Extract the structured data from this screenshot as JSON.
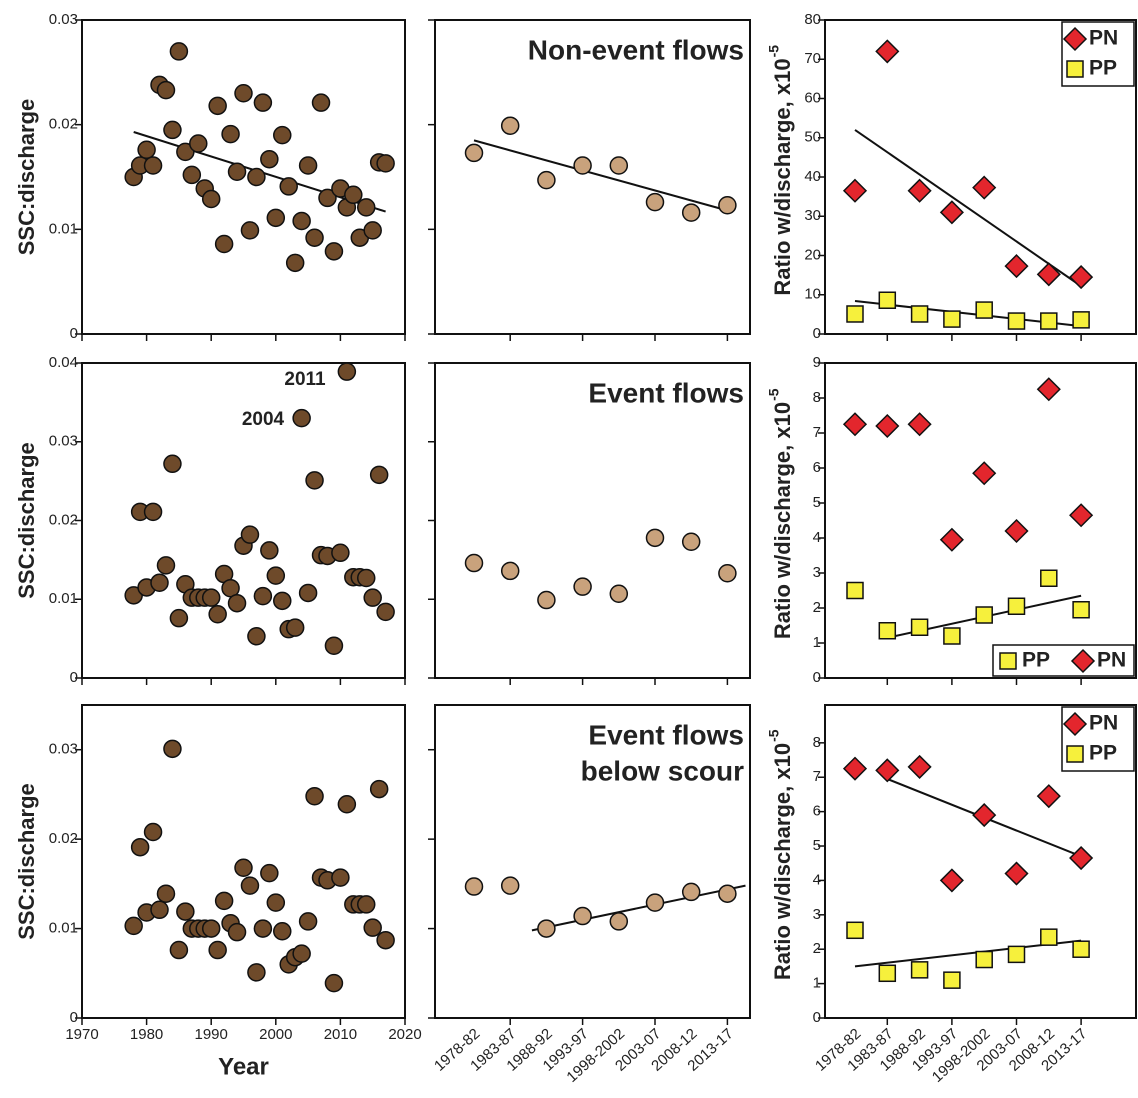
{
  "chart_data": [
    {
      "type": "scatter",
      "ylabel": "SSC:discharge",
      "xlim": [
        1970,
        2020
      ],
      "xticks": [
        1970,
        1980,
        1990,
        2000,
        2010,
        2020
      ],
      "xtick_labels": false,
      "ylim": [
        0,
        0.03
      ],
      "yticks": [
        0,
        0.01,
        0.02,
        0.03
      ],
      "x": [
        1978,
        1979,
        1980,
        1981,
        1982,
        1983,
        1984,
        1985,
        1986,
        1987,
        1988,
        1989,
        1990,
        1991,
        1992,
        1993,
        1994,
        1995,
        1996,
        1997,
        1998,
        1999,
        2000,
        2001,
        2002,
        2003,
        2004,
        2005,
        2006,
        2007,
        2008,
        2009,
        2010,
        2011,
        2012,
        2013,
        2014,
        2015,
        2016,
        2017
      ],
      "series": [
        {
          "color": "#6e4a2a",
          "marker": "circle",
          "values": [
            0.015,
            0.0161,
            0.0176,
            0.0161,
            0.0238,
            0.0233,
            0.0195,
            0.027,
            0.0174,
            0.0152,
            0.0182,
            0.0139,
            0.0129,
            0.0218,
            0.0086,
            0.0191,
            0.0155,
            0.023,
            0.0099,
            0.015,
            0.0221,
            0.0167,
            0.0111,
            0.019,
            0.0141,
            0.0068,
            0.0108,
            0.0161,
            0.0092,
            0.0221,
            0.013,
            0.0079,
            0.0139,
            0.0121,
            0.0133,
            0.0092,
            0.0121,
            0.0099,
            0.0164,
            0.0163
          ],
          "trend": {
            "x": [
              1978,
              2017
            ],
            "values": [
              0.0193,
              0.0117
            ]
          }
        }
      ]
    },
    {
      "type": "dotplot",
      "title_lines": [
        "Non-event flows"
      ],
      "categories": [
        null,
        null,
        null,
        null,
        null,
        null,
        null,
        null
      ],
      "ytick_labels": false,
      "ylim": [
        0,
        0.03
      ],
      "yticks": [
        0,
        0.01,
        0.02,
        0.03
      ],
      "series": [
        {
          "color": "#c9a27c",
          "marker": "circle",
          "values": [
            0.0173,
            0.0199,
            0.0147,
            0.0161,
            0.0161,
            0.0126,
            0.0116,
            0.0123
          ],
          "trend": {
            "x": [
              0,
              7
            ],
            "values": [
              0.0185,
              0.0118
            ]
          }
        }
      ]
    },
    {
      "type": "dotplot",
      "ylabel": "Ratio w/discharge, x10",
      "ylabel_exponent": "-5",
      "categories": [
        null,
        null,
        null,
        null,
        null,
        null,
        null,
        null
      ],
      "ylim": [
        0,
        80
      ],
      "yticks": [
        0,
        10,
        20,
        30,
        40,
        50,
        60,
        70,
        80
      ],
      "legend": "upper right",
      "series": [
        {
          "name": "PN",
          "color": "#e3262d",
          "marker": "diamond",
          "values": [
            36.5,
            72,
            36.5,
            31,
            37.3,
            17.3,
            15.2,
            14.5
          ],
          "trend": {
            "x": [
              0,
              7
            ],
            "values": [
              52,
              12.2
            ]
          }
        },
        {
          "name": "PP",
          "color": "#f6f03c",
          "marker": "square",
          "values": [
            5.1,
            8.6,
            5.1,
            3.8,
            6.1,
            3.3,
            3.3,
            3.6
          ],
          "trend": {
            "x": [
              0,
              7
            ],
            "values": [
              8.4,
              2.0
            ]
          }
        }
      ]
    },
    {
      "type": "scatter",
      "ylabel": "SSC:discharge",
      "xlim": [
        1970,
        2020
      ],
      "xticks": [
        1970,
        1980,
        1990,
        2000,
        2010,
        2020
      ],
      "xtick_labels": false,
      "ylim": [
        0,
        0.04
      ],
      "yticks": [
        0,
        0.01,
        0.02,
        0.03,
        0.04
      ],
      "annotations": [
        "2011",
        "2004"
      ],
      "x": [
        1978,
        1979,
        1980,
        1981,
        1982,
        1983,
        1984,
        1985,
        1986,
        1987,
        1988,
        1989,
        1990,
        1991,
        1992,
        1993,
        1994,
        1995,
        1996,
        1997,
        1998,
        1999,
        2000,
        2001,
        2002,
        2003,
        2004,
        2005,
        2006,
        2007,
        2008,
        2009,
        2010,
        2011,
        2012,
        2013,
        2014,
        2015,
        2016,
        2017
      ],
      "series": [
        {
          "color": "#6e4a2a",
          "marker": "circle",
          "values": [
            0.0105,
            0.0211,
            0.0115,
            0.0211,
            0.0121,
            0.0143,
            0.0272,
            0.0076,
            0.0119,
            0.0102,
            0.0102,
            0.0102,
            0.0102,
            0.0081,
            0.0132,
            0.0114,
            0.0095,
            0.0168,
            0.0182,
            0.0053,
            0.0104,
            0.0162,
            0.013,
            0.0098,
            0.0062,
            0.0064,
            0.033,
            0.0108,
            0.0251,
            0.0156,
            0.0155,
            0.0041,
            0.0159,
            0.0389,
            0.0128,
            0.0128,
            0.0127,
            0.0102,
            0.0258,
            0.0084
          ]
        }
      ]
    },
    {
      "type": "dotplot",
      "title_lines": [
        "Event flows"
      ],
      "categories": [
        null,
        null,
        null,
        null,
        null,
        null,
        null,
        null
      ],
      "ytick_labels": false,
      "ylim": [
        0,
        0.04
      ],
      "yticks": [
        0,
        0.01,
        0.02,
        0.03,
        0.04
      ],
      "series": [
        {
          "color": "#c9a27c",
          "marker": "circle",
          "values": [
            0.0146,
            0.0136,
            0.0099,
            0.0116,
            0.0107,
            0.0178,
            0.0173,
            0.0133
          ]
        }
      ]
    },
    {
      "type": "dotplot",
      "ylabel": "Ratio w/discharge, x10",
      "ylabel_exponent": "-5",
      "categories": [
        null,
        null,
        null,
        null,
        null,
        null,
        null,
        null
      ],
      "ylim": [
        0,
        9
      ],
      "yticks": [
        0,
        1,
        2,
        3,
        4,
        5,
        6,
        7,
        8,
        9
      ],
      "legend": "lower right",
      "series": [
        {
          "name": "PP",
          "color": "#f6f03c",
          "marker": "square",
          "values": [
            2.5,
            1.35,
            1.45,
            1.2,
            1.8,
            2.05,
            2.85,
            1.95
          ],
          "trend": {
            "x": [
              1,
              7
            ],
            "values": [
              1.15,
              2.35
            ]
          }
        },
        {
          "name": "PN",
          "color": "#e3262d",
          "marker": "diamond",
          "values": [
            7.25,
            7.2,
            7.25,
            3.95,
            5.85,
            4.2,
            8.25,
            4.65
          ]
        }
      ]
    },
    {
      "type": "scatter",
      "ylabel": "SSC:discharge",
      "xlabel": "Year",
      "xlim": [
        1970,
        2020
      ],
      "xticks": [
        1970,
        1980,
        1990,
        2000,
        2010,
        2020
      ],
      "ylim": [
        0,
        0.035
      ],
      "yticks": [
        0,
        0.01,
        0.02,
        0.03
      ],
      "x": [
        1978,
        1979,
        1980,
        1981,
        1982,
        1983,
        1984,
        1985,
        1986,
        1987,
        1988,
        1989,
        1990,
        1991,
        1992,
        1993,
        1994,
        1995,
        1996,
        1997,
        1998,
        1999,
        2000,
        2001,
        2002,
        2003,
        2004,
        2005,
        2006,
        2007,
        2008,
        2009,
        2010,
        2011,
        2012,
        2013,
        2014,
        2015,
        2016,
        2017
      ],
      "series": [
        {
          "color": "#6e4a2a",
          "marker": "circle",
          "values": [
            0.0103,
            0.0191,
            0.0118,
            0.0208,
            0.0121,
            0.0139,
            0.0301,
            0.0076,
            0.0119,
            0.01,
            0.01,
            0.01,
            0.01,
            0.0076,
            0.0131,
            0.0106,
            0.0096,
            0.0168,
            0.0148,
            0.0051,
            0.01,
            0.0162,
            0.0129,
            0.0097,
            0.006,
            0.0068,
            0.0072,
            0.0108,
            0.0248,
            0.0157,
            0.0154,
            0.0039,
            0.0157,
            0.0239,
            0.0127,
            0.0127,
            0.0127,
            0.0101,
            0.0256,
            0.0087
          ]
        }
      ]
    },
    {
      "type": "dotplot",
      "title_lines": [
        "Event flows",
        "below scour"
      ],
      "categories": [
        "1978-82",
        "1983-87",
        "1988-92",
        "1993-97",
        "1998-2002",
        "2003-07",
        "2008-12",
        "2013-17"
      ],
      "ytick_labels": false,
      "ylim": [
        0,
        0.035
      ],
      "yticks": [
        0,
        0.01,
        0.02,
        0.03
      ],
      "series": [
        {
          "color": "#c9a27c",
          "marker": "circle",
          "values": [
            0.0147,
            0.0148,
            0.01,
            0.0114,
            0.0108,
            0.0129,
            0.0141,
            0.0139
          ],
          "trend": {
            "x": [
              1.6,
              7.5
            ],
            "values": [
              0.0098,
              0.0148
            ]
          }
        }
      ]
    },
    {
      "type": "dotplot",
      "ylabel": "Ratio w/discharge, x10",
      "ylabel_exponent": "-5",
      "categories": [
        "1978-82",
        "1983-87",
        "1988-92",
        "1993-97",
        "1998-2002",
        "2003-07",
        "2008-12",
        "2013-17"
      ],
      "ylim": [
        0,
        9.1
      ],
      "yticks": [
        0,
        1,
        2,
        3,
        4,
        5,
        6,
        7,
        8
      ],
      "legend": "upper right",
      "series": [
        {
          "name": "PN",
          "color": "#e3262d",
          "marker": "diamond",
          "values": [
            7.25,
            7.2,
            7.3,
            4.0,
            5.9,
            4.2,
            6.45,
            4.65
          ],
          "trend": {
            "x": [
              1,
              7
            ],
            "values": [
              6.95,
              4.7
            ]
          }
        },
        {
          "name": "PP",
          "color": "#f6f03c",
          "marker": "square",
          "values": [
            2.55,
            1.3,
            1.4,
            1.1,
            1.7,
            1.85,
            2.35,
            2.0
          ],
          "trend": {
            "x": [
              0,
              7
            ],
            "values": [
              1.5,
              2.25
            ]
          }
        }
      ]
    }
  ]
}
